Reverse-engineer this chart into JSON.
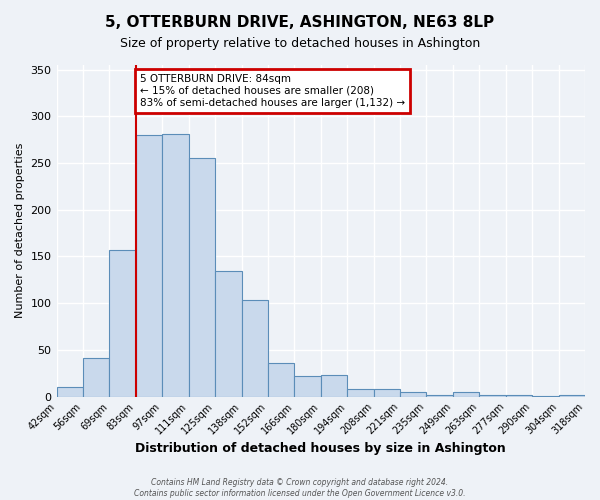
{
  "title": "5, OTTERBURN DRIVE, ASHINGTON, NE63 8LP",
  "subtitle": "Size of property relative to detached houses in Ashington",
  "xlabel": "Distribution of detached houses by size in Ashington",
  "ylabel": "Number of detached properties",
  "bin_labels": [
    "42sqm",
    "56sqm",
    "69sqm",
    "83sqm",
    "97sqm",
    "111sqm",
    "125sqm",
    "138sqm",
    "152sqm",
    "166sqm",
    "180sqm",
    "194sqm",
    "208sqm",
    "221sqm",
    "235sqm",
    "249sqm",
    "263sqm",
    "277sqm",
    "290sqm",
    "304sqm",
    "318sqm"
  ],
  "bar_heights": [
    10,
    41,
    157,
    280,
    281,
    255,
    134,
    103,
    36,
    22,
    23,
    8,
    8,
    5,
    2,
    5,
    2,
    2,
    1,
    2
  ],
  "bar_color": "#c9d9ec",
  "bar_edge_color": "#5b8db8",
  "vline_x": 3,
  "vline_color": "#cc0000",
  "annotation_title": "5 OTTERBURN DRIVE: 84sqm",
  "annotation_line1": "← 15% of detached houses are smaller (208)",
  "annotation_line2": "83% of semi-detached houses are larger (1,132) →",
  "annotation_box_color": "#cc0000",
  "ylim": [
    0,
    355
  ],
  "yticks": [
    0,
    50,
    100,
    150,
    200,
    250,
    300,
    350
  ],
  "footer1": "Contains HM Land Registry data © Crown copyright and database right 2024.",
  "footer2": "Contains public sector information licensed under the Open Government Licence v3.0.",
  "bg_color": "#eef2f7",
  "plot_bg_color": "#eef2f7"
}
